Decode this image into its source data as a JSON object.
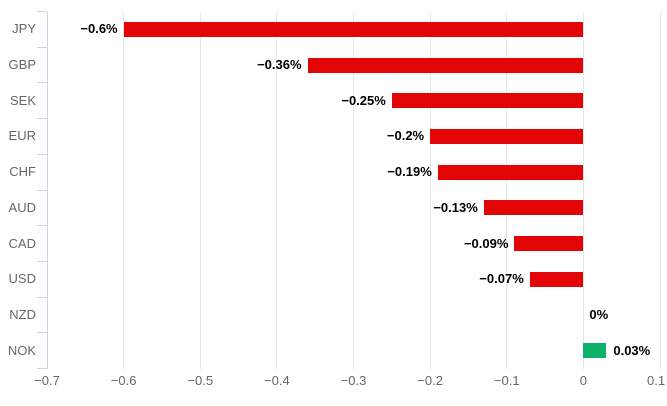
{
  "chart_data": {
    "type": "bar",
    "orientation": "horizontal",
    "title": "",
    "xlabel": "",
    "ylabel": "",
    "categories": [
      "JPY",
      "GBP",
      "SEK",
      "EUR",
      "CHF",
      "AUD",
      "CAD",
      "USD",
      "NZD",
      "NOK"
    ],
    "values": [
      -0.6,
      -0.36,
      -0.25,
      -0.2,
      -0.19,
      -0.13,
      -0.09,
      -0.07,
      0,
      0.03
    ],
    "data_labels": [
      "−0.6%",
      "−0.36%",
      "−0.25%",
      "−0.2%",
      "−0.19%",
      "−0.13%",
      "−0.09%",
      "−0.07%",
      "0%",
      "0.03%"
    ],
    "xlim": [
      -0.7,
      0.1
    ],
    "x_ticks": [
      -0.7,
      -0.6,
      -0.5,
      -0.4,
      -0.3,
      -0.2,
      -0.1,
      0,
      0.1
    ],
    "x_tick_labels": [
      "−0.7",
      "−0.6",
      "−0.5",
      "−0.4",
      "−0.3",
      "−0.2",
      "−0.1",
      "0",
      "0.1"
    ],
    "grid": true,
    "legend": "none",
    "colors": {
      "negative_bar": "#e30505",
      "positive_bar": "#0cb268",
      "gridline": "#e6e6e6",
      "axis_line": "#ccd6eb",
      "category_label": "#666666",
      "x_tick_label": "#666666",
      "data_label": "#000000",
      "background": "#ffffff"
    }
  }
}
